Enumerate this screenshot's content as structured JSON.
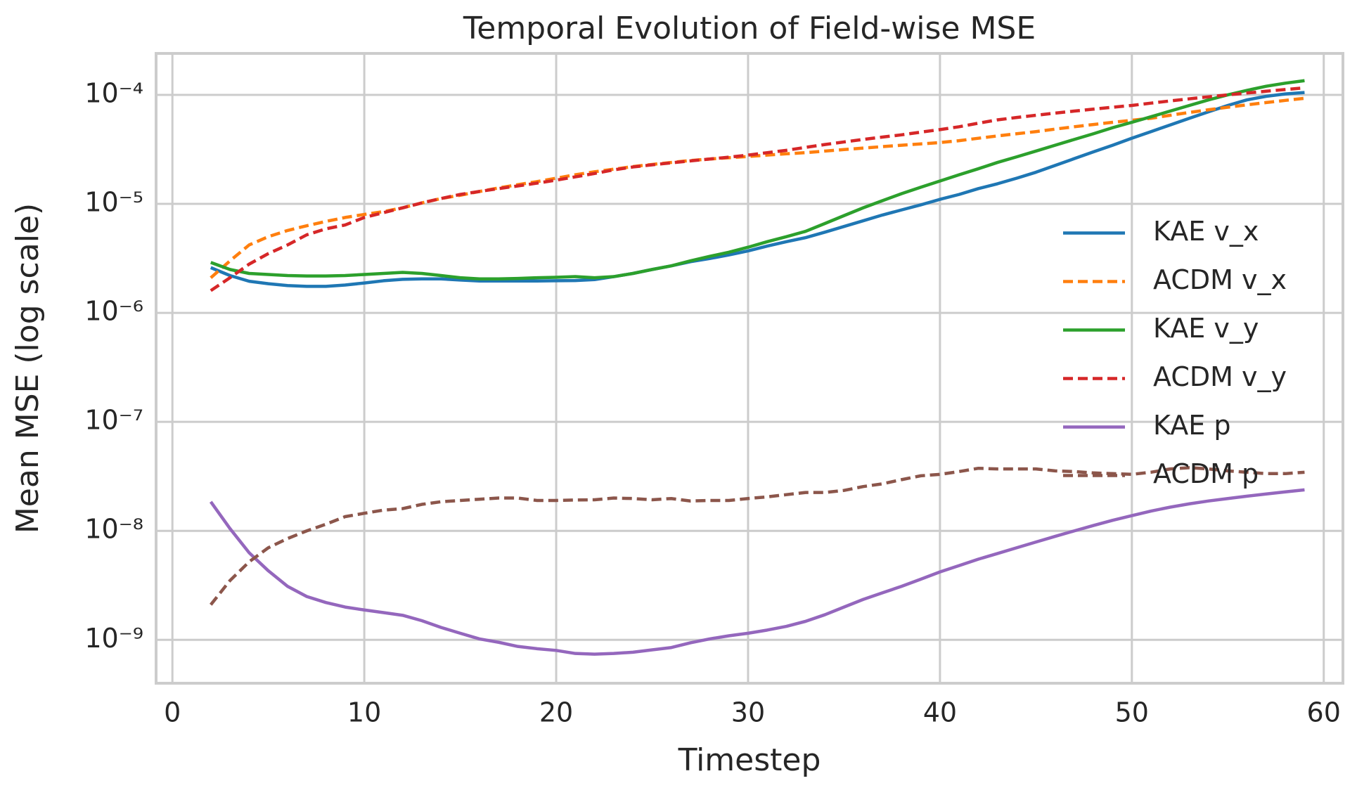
{
  "chart_data": {
    "type": "line",
    "title": "Temporal Evolution of Field-wise MSE",
    "x_label": "Timestep",
    "y_label": "Mean MSE (log scale)",
    "log_y": true,
    "grid": true,
    "legend": "center right",
    "xlim": [
      -0.85,
      61.0
    ],
    "ylim": [
      4e-10,
      0.00024
    ],
    "xticks": [
      0,
      10,
      20,
      30,
      40,
      50,
      60
    ],
    "yticks": [
      {
        "value": 1e-09,
        "label": "10⁻⁹"
      },
      {
        "value": 1e-08,
        "label": "10⁻⁸"
      },
      {
        "value": 1e-07,
        "label": "10⁻⁷"
      },
      {
        "value": 1e-06,
        "label": "10⁻⁶"
      },
      {
        "value": 1e-05,
        "label": "10⁻⁵"
      },
      {
        "value": 0.0001,
        "label": "10⁻⁴"
      }
    ],
    "x": [
      2,
      3,
      4,
      5,
      6,
      7,
      8,
      9,
      10,
      11,
      12,
      13,
      14,
      15,
      16,
      17,
      18,
      19,
      20,
      21,
      22,
      23,
      24,
      25,
      26,
      27,
      28,
      29,
      30,
      31,
      32,
      33,
      34,
      35,
      36,
      37,
      38,
      39,
      40,
      41,
      42,
      43,
      44,
      45,
      46,
      47,
      48,
      49,
      50,
      51,
      52,
      53,
      54,
      55,
      56,
      57,
      58,
      59
    ],
    "series": [
      {
        "name": "KAE v_x",
        "color": "#1f77b4",
        "linestyle": "solid",
        "values": [
          2.6e-06,
          2.2e-06,
          1.95e-06,
          1.85e-06,
          1.78e-06,
          1.75e-06,
          1.75e-06,
          1.8e-06,
          1.88e-06,
          1.97e-06,
          2.03e-06,
          2.05e-06,
          2.05e-06,
          2e-06,
          1.96e-06,
          1.96e-06,
          1.96e-06,
          1.96e-06,
          1.97e-06,
          1.98e-06,
          2.02e-06,
          2.15e-06,
          2.3e-06,
          2.5e-06,
          2.7e-06,
          2.95e-06,
          3.15e-06,
          3.4e-06,
          3.7e-06,
          4.1e-06,
          4.5e-06,
          4.9e-06,
          5.5e-06,
          6.2e-06,
          7e-06,
          7.9e-06,
          8.8e-06,
          9.8e-06,
          1.1e-05,
          1.22e-05,
          1.38e-05,
          1.53e-05,
          1.72e-05,
          1.95e-05,
          2.25e-05,
          2.6e-05,
          3e-05,
          3.45e-05,
          4e-05,
          4.6e-05,
          5.3e-05,
          6.1e-05,
          7e-05,
          8e-05,
          9e-05,
          9.7e-05,
          0.000102,
          0.000105
        ]
      },
      {
        "name": "ACDM v_x",
        "color": "#ff7f0e",
        "linestyle": "dashed",
        "values": [
          2.1e-06,
          3e-06,
          4.2e-06,
          5e-06,
          5.7e-06,
          6.3e-06,
          6.9e-06,
          7.5e-06,
          8e-06,
          8.5e-06,
          9.2e-06,
          1.02e-05,
          1.12e-05,
          1.2e-05,
          1.3e-05,
          1.4e-05,
          1.5e-05,
          1.6e-05,
          1.72e-05,
          1.85e-05,
          1.97e-05,
          2.08e-05,
          2.2e-05,
          2.3e-05,
          2.4e-05,
          2.5e-05,
          2.58e-05,
          2.65e-05,
          2.72e-05,
          2.8e-05,
          2.88e-05,
          2.95e-05,
          3.05e-05,
          3.15e-05,
          3.25e-05,
          3.35e-05,
          3.45e-05,
          3.55e-05,
          3.65e-05,
          3.8e-05,
          4e-05,
          4.2e-05,
          4.4e-05,
          4.6e-05,
          4.85e-05,
          5.1e-05,
          5.35e-05,
          5.6e-05,
          5.85e-05,
          6.1e-05,
          6.5e-05,
          6.9e-05,
          7.3e-05,
          7.7e-05,
          8.1e-05,
          8.5e-05,
          8.9e-05,
          9.3e-05
        ]
      },
      {
        "name": "KAE v_y",
        "color": "#2ca02c",
        "linestyle": "solid",
        "values": [
          2.9e-06,
          2.5e-06,
          2.3e-06,
          2.25e-06,
          2.2e-06,
          2.18e-06,
          2.18e-06,
          2.2e-06,
          2.25e-06,
          2.3e-06,
          2.35e-06,
          2.3e-06,
          2.2e-06,
          2.1e-06,
          2.05e-06,
          2.05e-06,
          2.07e-06,
          2.1e-06,
          2.12e-06,
          2.15e-06,
          2.1e-06,
          2.15e-06,
          2.3e-06,
          2.5e-06,
          2.7e-06,
          3e-06,
          3.3e-06,
          3.6e-06,
          4e-06,
          4.5e-06,
          5e-06,
          5.6e-06,
          6.6e-06,
          7.8e-06,
          9.2e-06,
          1.07e-05,
          1.24e-05,
          1.42e-05,
          1.62e-05,
          1.85e-05,
          2.1e-05,
          2.4e-05,
          2.7e-05,
          3.05e-05,
          3.45e-05,
          3.9e-05,
          4.4e-05,
          5e-05,
          5.6e-05,
          6.3e-05,
          7.1e-05,
          8e-05,
          9e-05,
          0.0001,
          0.00011,
          0.00012,
          0.000128,
          0.000135
        ]
      },
      {
        "name": "ACDM v_y",
        "color": "#d62728",
        "linestyle": "dashed",
        "values": [
          1.6e-06,
          2.1e-06,
          2.8e-06,
          3.5e-06,
          4.2e-06,
          5.2e-06,
          5.9e-06,
          6.4e-06,
          7.5e-06,
          8.3e-06,
          9.2e-06,
          1.02e-05,
          1.12e-05,
          1.22e-05,
          1.3e-05,
          1.38e-05,
          1.46e-05,
          1.55e-05,
          1.65e-05,
          1.77e-05,
          1.9e-05,
          2.05e-05,
          2.18e-05,
          2.28e-05,
          2.38e-05,
          2.48e-05,
          2.58e-05,
          2.68e-05,
          2.8e-05,
          2.95e-05,
          3.1e-05,
          3.3e-05,
          3.5e-05,
          3.7e-05,
          3.9e-05,
          4.1e-05,
          4.3e-05,
          4.55e-05,
          4.8e-05,
          5.1e-05,
          5.5e-05,
          5.9e-05,
          6.2e-05,
          6.5e-05,
          6.8e-05,
          7.1e-05,
          7.4e-05,
          7.7e-05,
          8e-05,
          8.4e-05,
          8.8e-05,
          9.2e-05,
          9.6e-05,
          0.0001,
          0.000104,
          0.000108,
          0.000112,
          0.000116
        ]
      },
      {
        "name": "KAE p",
        "color": "#9467bd",
        "linestyle": "solid",
        "values": [
          1.85e-08,
          1.05e-08,
          6.3e-09,
          4.3e-09,
          3.1e-09,
          2.5e-09,
          2.2e-09,
          2e-09,
          1.88e-09,
          1.78e-09,
          1.68e-09,
          1.5e-09,
          1.3e-09,
          1.15e-09,
          1.02e-09,
          9.5e-10,
          8.7e-10,
          8.3e-10,
          8e-10,
          7.5e-10,
          7.4e-10,
          7.5e-10,
          7.7e-10,
          8.1e-10,
          8.5e-10,
          9.4e-10,
          1.02e-09,
          1.09e-09,
          1.15e-09,
          1.23e-09,
          1.33e-09,
          1.48e-09,
          1.7e-09,
          2e-09,
          2.35e-09,
          2.7e-09,
          3.1e-09,
          3.6e-09,
          4.2e-09,
          4.8e-09,
          5.5e-09,
          6.2e-09,
          7e-09,
          7.9e-09,
          8.9e-09,
          1e-08,
          1.12e-08,
          1.25e-08,
          1.38e-08,
          1.52e-08,
          1.65e-08,
          1.77e-08,
          1.88e-08,
          1.98e-08,
          2.08e-08,
          2.18e-08,
          2.28e-08,
          2.38e-08
        ]
      },
      {
        "name": "ACDM p",
        "color": "#8c564b",
        "linestyle": "dashed",
        "values": [
          2.1e-09,
          3.5e-09,
          5.2e-09,
          7e-09,
          8.5e-09,
          1e-08,
          1.15e-08,
          1.35e-08,
          1.45e-08,
          1.55e-08,
          1.6e-08,
          1.75e-08,
          1.85e-08,
          1.9e-08,
          1.95e-08,
          2e-08,
          2e-08,
          1.9e-08,
          1.9e-08,
          1.92e-08,
          1.93e-08,
          2e-08,
          1.98e-08,
          1.93e-08,
          1.98e-08,
          1.88e-08,
          1.9e-08,
          1.9e-08,
          1.98e-08,
          2.05e-08,
          2.15e-08,
          2.25e-08,
          2.25e-08,
          2.35e-08,
          2.55e-08,
          2.7e-08,
          2.95e-08,
          3.2e-08,
          3.3e-08,
          3.5e-08,
          3.75e-08,
          3.7e-08,
          3.7e-08,
          3.7e-08,
          3.55e-08,
          3.5e-08,
          3.4e-08,
          3.35e-08,
          3.3e-08,
          3.45e-08,
          3.7e-08,
          3.8e-08,
          3.7e-08,
          3.55e-08,
          3.45e-08,
          3.35e-08,
          3.35e-08,
          3.45e-08
        ]
      }
    ]
  }
}
